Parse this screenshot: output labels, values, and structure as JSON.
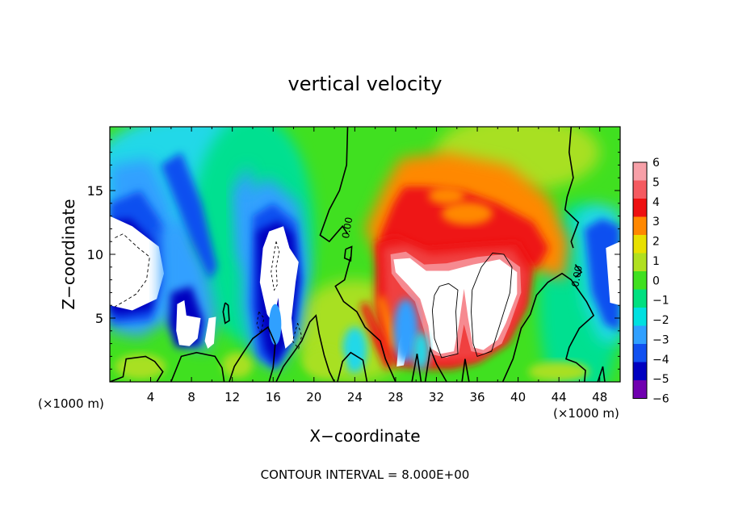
{
  "chart_data": {
    "type": "heatmap",
    "title": "vertical velocity",
    "xlabel": "X−coordinate",
    "ylabel": "Z−coordinate",
    "x_unit_left": "(×1000 m)",
    "x_unit_right": "(×1000 m)",
    "xlim": [
      0,
      50
    ],
    "ylim": [
      0,
      20
    ],
    "x_ticks": [
      4,
      8,
      12,
      16,
      20,
      24,
      28,
      32,
      36,
      40,
      44,
      48
    ],
    "y_ticks": [
      5,
      10,
      15
    ],
    "contour_label": "0.00",
    "footer": "CONTOUR INTERVAL = 8.000E+00",
    "colorbar": {
      "levels": [
        6,
        5,
        4,
        3,
        2,
        1,
        0,
        -1,
        -2,
        -3,
        -4,
        -5,
        -6
      ],
      "labels": [
        "6",
        "5",
        "4",
        "3",
        "2",
        "1",
        "0",
        "−1",
        "−2",
        "−3",
        "−4",
        "−5",
        "−6"
      ],
      "colors": [
        "#f7a0a8",
        "#f55a60",
        "#ee1010",
        "#ff8800",
        "#e8e000",
        "#b0e020",
        "#40e020",
        "#00e080",
        "#00e0e0",
        "#30a0ff",
        "#1050f0",
        "#0000c0",
        "#7000b0"
      ]
    },
    "field_features": [
      {
        "kind": "downdraft",
        "x": 3,
        "z": 9,
        "strength": -8
      },
      {
        "kind": "downdraft",
        "x": 7,
        "z": 6,
        "strength": -7
      },
      {
        "kind": "downdraft",
        "x": 15.5,
        "z": 8,
        "strength": -8
      },
      {
        "kind": "downdraft",
        "x": 48.5,
        "z": 8,
        "strength": -6
      },
      {
        "kind": "updraft",
        "x": 34,
        "z": 9,
        "strength": 9
      },
      {
        "kind": "updraft",
        "x": 30,
        "z": 5,
        "strength": 7
      },
      {
        "kind": "updraft",
        "x": 36.5,
        "z": 6,
        "strength": 9
      }
    ]
  }
}
